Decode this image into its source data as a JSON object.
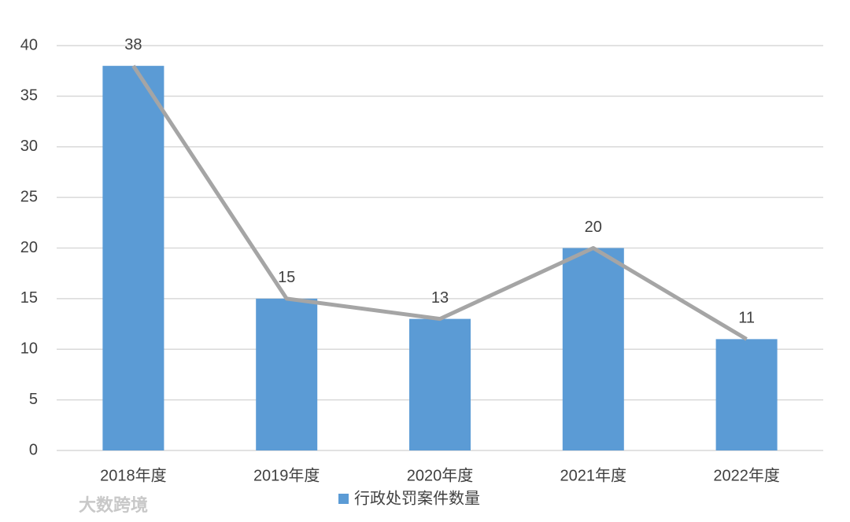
{
  "chart_data": {
    "type": "bar",
    "categories": [
      "2018年度",
      "2019年度",
      "2020年度",
      "2021年度",
      "2022年度"
    ],
    "series": [
      {
        "name": "行政处罚案件数量",
        "color": "#5b9bd5",
        "values": [
          38,
          15,
          13,
          20,
          11
        ]
      }
    ],
    "line_overlay": true,
    "line_color": "#a5a5a5",
    "ylim": [
      0,
      40
    ],
    "yticks": [
      0,
      5,
      10,
      15,
      20,
      25,
      30,
      35,
      40
    ],
    "grid": true,
    "legend": "bottom"
  },
  "watermark": "大数跨境"
}
